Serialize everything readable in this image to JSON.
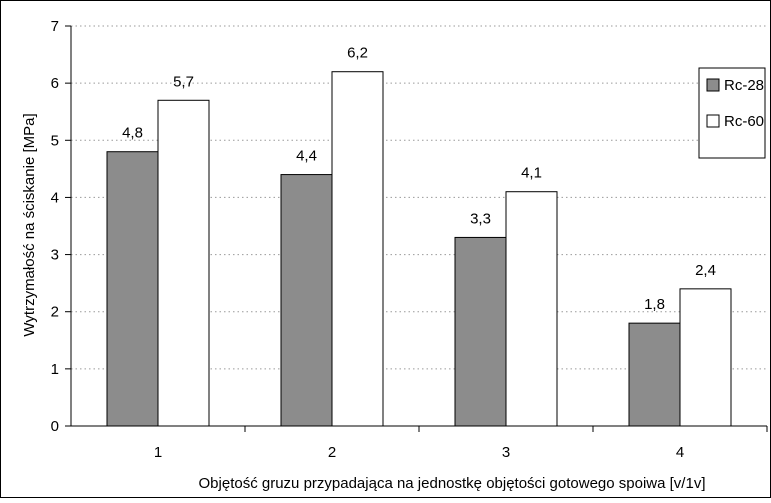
{
  "chart_data": {
    "type": "bar",
    "categories": [
      "1",
      "2",
      "3",
      "4"
    ],
    "series": [
      {
        "name": "Rc-28",
        "values": [
          4.8,
          4.4,
          3.3,
          1.8
        ],
        "labels": [
          "4,8",
          "4,4",
          "3,3",
          "1,8"
        ],
        "color": "#8c8c8c"
      },
      {
        "name": "Rc-60",
        "values": [
          5.7,
          6.2,
          4.1,
          2.4
        ],
        "labels": [
          "5,7",
          "6,2",
          "4,1",
          "2,4"
        ],
        "color": "#ffffff"
      }
    ],
    "xlabel": "Objętość gruzu przypadająca na jednostkę objętości gotowego spoiwa   [v/1v]",
    "ylabel": "Wytrzymałość na ściskanie  [MPa]",
    "ylim": [
      0,
      7
    ],
    "yticks": [
      "0",
      "1",
      "2",
      "3",
      "4",
      "5",
      "6",
      "7"
    ],
    "grid": true,
    "legend_position": "top-right"
  }
}
